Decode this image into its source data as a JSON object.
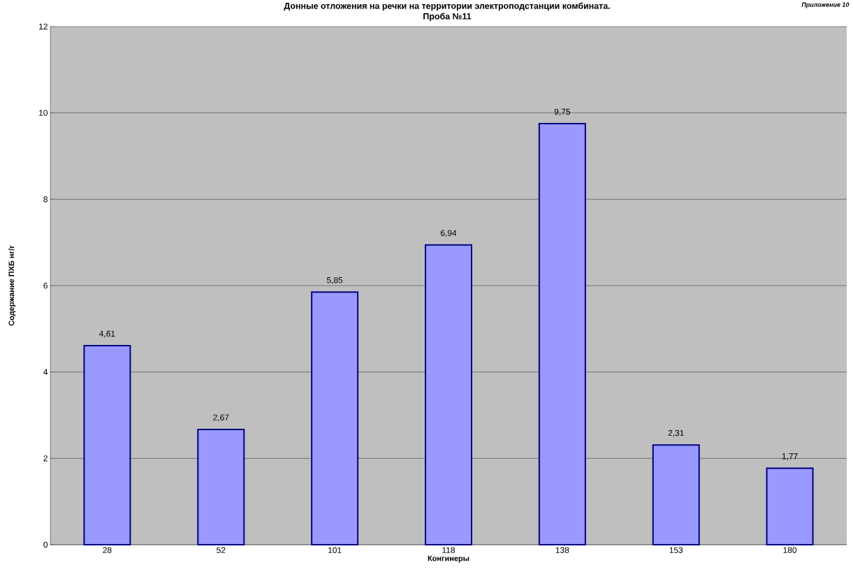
{
  "chart_data": {
    "type": "bar",
    "title": "Донные отложения на речки на территории электроподстанции комбината.",
    "subtitle": "Проба №11",
    "xlabel": "Конгинеры",
    "ylabel": "Содержание ПХБ нг/г",
    "annotations": [
      "Приложение 10"
    ],
    "categories": [
      "28",
      "52",
      "101",
      "118",
      "138",
      "153",
      "180"
    ],
    "values": [
      4.61,
      2.67,
      5.85,
      6.94,
      9.75,
      2.31,
      1.77
    ],
    "value_labels": [
      "4,61",
      "2,67",
      "5,85",
      "6,94",
      "9,75",
      "2,31",
      "1,77"
    ],
    "color": "#9999ff",
    "ylim": [
      0,
      12
    ],
    "yticks": [
      0,
      2,
      4,
      6,
      8,
      10,
      12
    ],
    "grid": "y"
  }
}
